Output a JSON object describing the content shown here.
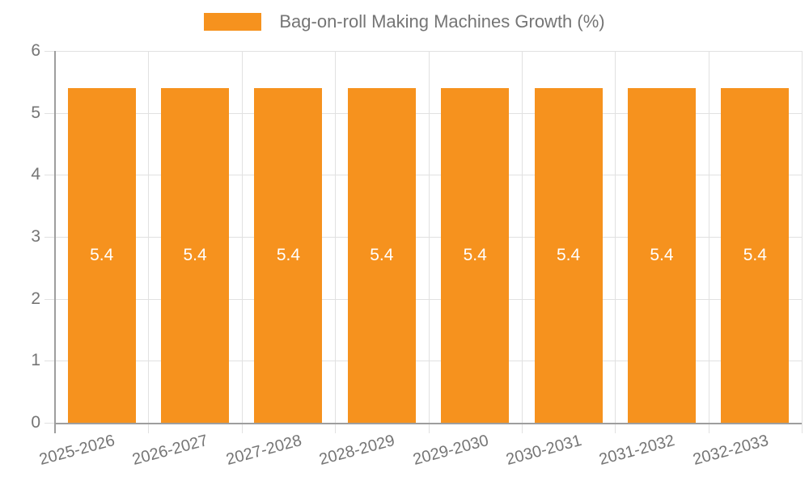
{
  "legend": {
    "label": "Bag-on-roll Making Machines Growth (%)"
  },
  "colors": {
    "bar": "#F6921E",
    "grid": "#E1E1E1",
    "axis": "#9E9E9E",
    "text": "#757575",
    "value_label": "#FFFFFF",
    "background": "#FFFFFF"
  },
  "chart_data": {
    "type": "bar",
    "title": "Bag-on-roll Making Machines Growth (%)",
    "categories": [
      "2025-2026",
      "2026-2027",
      "2027-2028",
      "2028-2029",
      "2029-2030",
      "2030-2031",
      "2031-2032",
      "2032-2033"
    ],
    "values": [
      5.4,
      5.4,
      5.4,
      5.4,
      5.4,
      5.4,
      5.4,
      5.4
    ],
    "xlabel": "",
    "ylabel": "",
    "ylim": [
      0,
      6
    ],
    "yticks": [
      0,
      1,
      2,
      3,
      4,
      5,
      6
    ],
    "grid": true,
    "legend_position": "top"
  }
}
